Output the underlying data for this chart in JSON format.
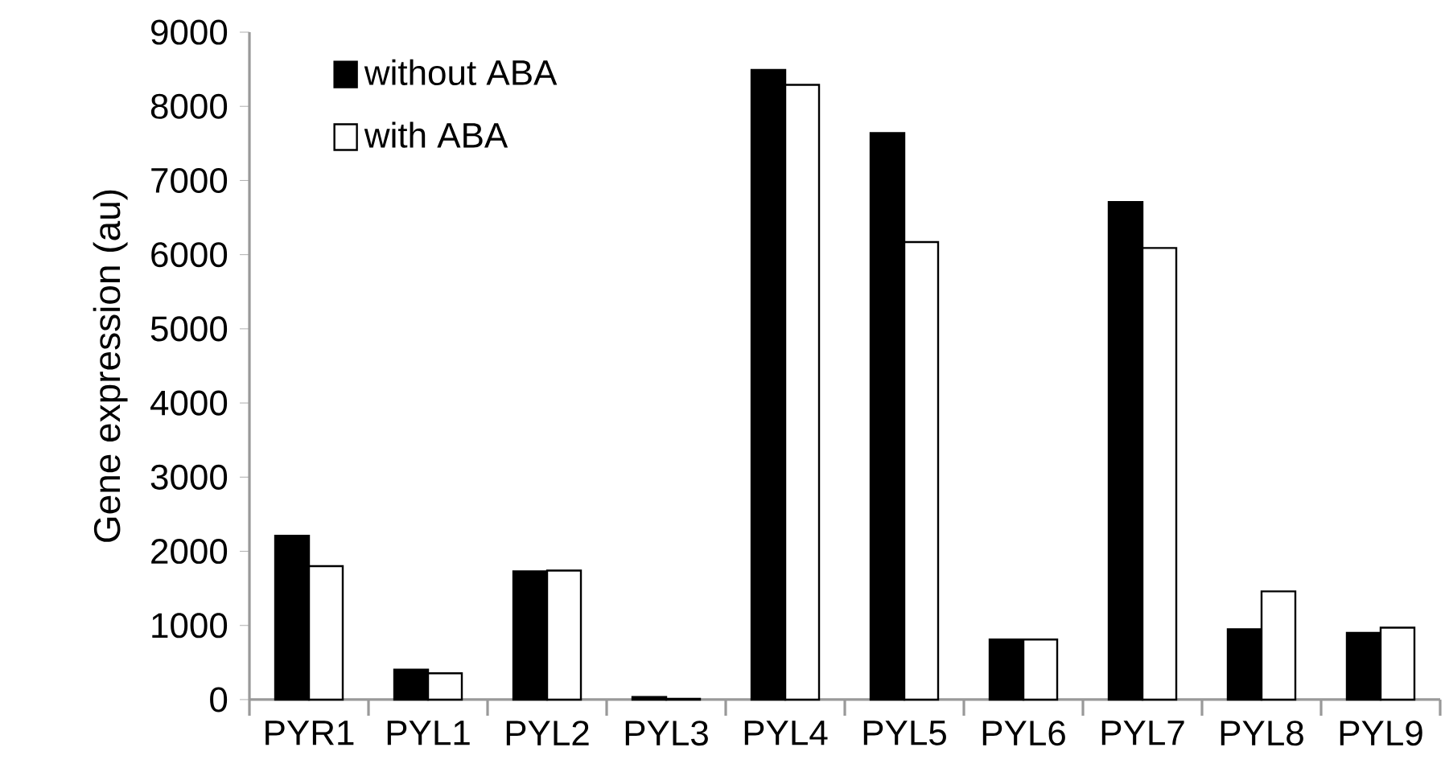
{
  "chart_data": {
    "type": "bar",
    "ylabel": "Gene expression (au)",
    "categories": [
      "PYR1",
      "PYL1",
      "PYL2",
      "PYL3",
      "PYL4",
      "PYL5",
      "PYL6",
      "PYL7",
      "PYL8",
      "PYL9"
    ],
    "series": [
      {
        "name": "without ABA",
        "color": "#000000",
        "values": [
          2210,
          405,
          1730,
          35,
          8490,
          7640,
          810,
          6710,
          950,
          900
        ]
      },
      {
        "name": "with ABA",
        "color": "#ffffff",
        "values": [
          1800,
          355,
          1740,
          10,
          8290,
          6170,
          810,
          6090,
          1460,
          970
        ]
      }
    ],
    "ylim": [
      0,
      9000
    ],
    "yticks": [
      0,
      1000,
      2000,
      3000,
      4000,
      5000,
      6000,
      7000,
      8000,
      9000
    ],
    "legend": "top left"
  }
}
